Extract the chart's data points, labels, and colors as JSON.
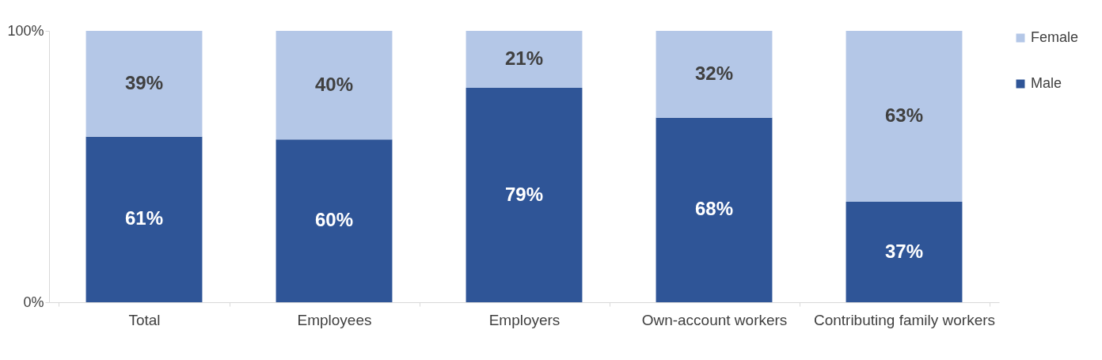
{
  "chart_data": {
    "type": "bar",
    "stacked": true,
    "categories": [
      "Total",
      "Employees",
      "Employers",
      "Own-account workers",
      "Contributing family workers"
    ],
    "series": [
      {
        "name": "Male",
        "color": "#2f5597",
        "values": [
          61,
          60,
          79,
          68,
          37
        ],
        "value_labels": [
          "61%",
          "60%",
          "79%",
          "68%",
          "37%"
        ]
      },
      {
        "name": "Female",
        "color": "#b4c7e7",
        "values": [
          39,
          40,
          21,
          32,
          63
        ],
        "value_labels": [
          "39%",
          "40%",
          "21%",
          "32%",
          "63%"
        ]
      }
    ],
    "ylim": [
      0,
      100
    ],
    "yticks": [
      {
        "value": 0,
        "label": "0%"
      },
      {
        "value": 100,
        "label": "100%"
      }
    ],
    "grid": false,
    "legend": "right"
  }
}
